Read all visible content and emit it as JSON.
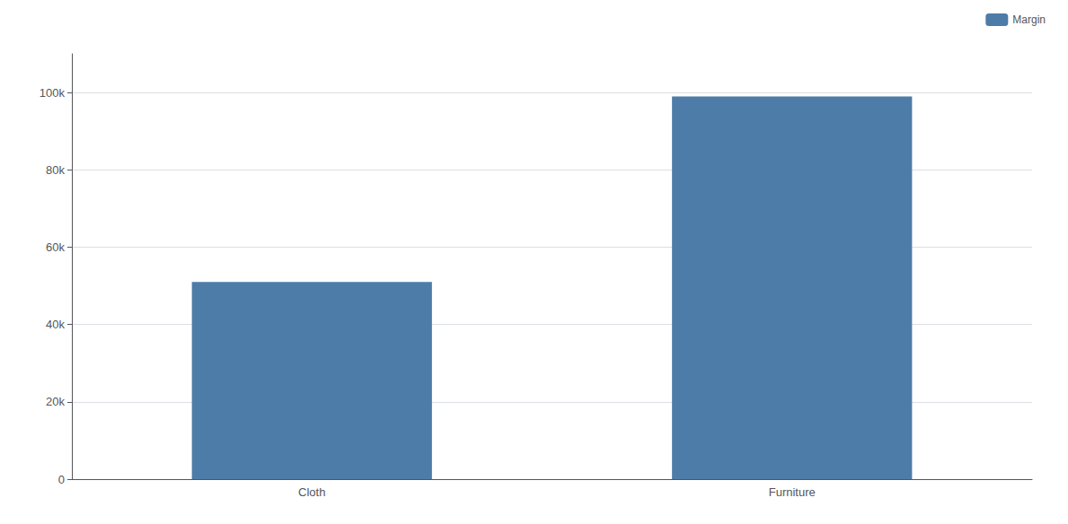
{
  "chart_data": {
    "type": "bar",
    "categories": [
      "Cloth",
      "Furniture"
    ],
    "series": [
      {
        "name": "Margin",
        "color": "#4d7ca8",
        "values": [
          51000,
          99000
        ]
      }
    ],
    "ylim": [
      0,
      110000
    ],
    "yticks": [
      0,
      {
        "value": 20000,
        "label": "20k"
      },
      {
        "value": 40000,
        "label": "40k"
      },
      {
        "value": 60000,
        "label": "60k"
      },
      {
        "value": 80000,
        "label": "80k"
      },
      {
        "value": 100000,
        "label": "100k"
      }
    ],
    "grid": true,
    "legend": "upper right"
  }
}
